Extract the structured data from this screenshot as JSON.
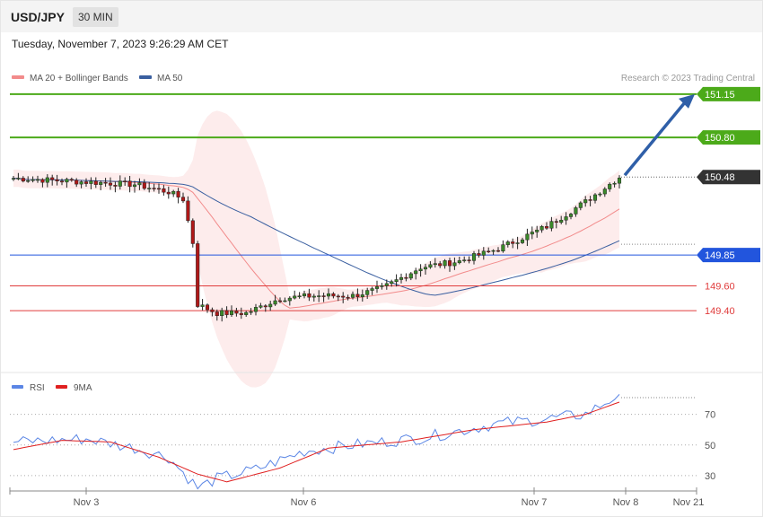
{
  "header": {
    "symbol": "USD/JPY",
    "timeframe": "30 MIN",
    "datetime": "Tuesday, November 7, 2023 9:26:29 AM CET"
  },
  "legend": {
    "ma20": "MA 20 + Bollinger Bands",
    "ma20_color": "#f28b8b",
    "ma50": "MA 50",
    "ma50_color": "#3a5fa0",
    "credit": "Research © 2023 Trading Central"
  },
  "rsi_legend": {
    "rsi": "RSI",
    "rsi_color": "#5b86e5",
    "ma": "9MA",
    "ma_color": "#e02020"
  },
  "levels": [
    {
      "value": "151.15",
      "price": 151.15,
      "kind": "green"
    },
    {
      "value": "150.80",
      "price": 150.8,
      "kind": "green"
    },
    {
      "value": "150.48",
      "price": 150.48,
      "kind": "last"
    },
    {
      "value": "149.85",
      "price": 149.85,
      "kind": "blue"
    },
    {
      "value": "149.60",
      "price": 149.6,
      "kind": "red"
    },
    {
      "value": "149.40",
      "price": 149.4,
      "kind": "red"
    }
  ],
  "xaxis": [
    "Nov 3",
    "Nov 6",
    "Nov 7",
    "Nov 8",
    "Nov 21"
  ],
  "rsi_ticks": [
    "70",
    "50",
    "30"
  ],
  "chart_data": {
    "type": "candlestick",
    "price_range": [
      148.9,
      151.2
    ],
    "anchors": [
      [
        0,
        150.47
      ],
      [
        10,
        150.45
      ],
      [
        25,
        150.42
      ],
      [
        32,
        150.36
      ],
      [
        35,
        150.3
      ],
      [
        37,
        149.95
      ],
      [
        38,
        149.45
      ],
      [
        42,
        149.38
      ],
      [
        48,
        149.38
      ],
      [
        55,
        149.5
      ],
      [
        62,
        149.52
      ],
      [
        70,
        149.52
      ],
      [
        76,
        149.58
      ],
      [
        84,
        149.75
      ],
      [
        92,
        149.8
      ],
      [
        100,
        149.9
      ],
      [
        110,
        150.08
      ],
      [
        118,
        150.28
      ],
      [
        125,
        150.48
      ]
    ],
    "rsi_range": [
      20,
      85
    ],
    "rsi_anchors": [
      [
        0,
        52
      ],
      [
        15,
        54
      ],
      [
        25,
        48
      ],
      [
        32,
        42
      ],
      [
        38,
        22
      ],
      [
        42,
        28
      ],
      [
        50,
        34
      ],
      [
        60,
        46
      ],
      [
        70,
        50
      ],
      [
        85,
        55
      ],
      [
        100,
        64
      ],
      [
        110,
        67
      ],
      [
        118,
        70
      ],
      [
        125,
        83
      ]
    ],
    "rsi_ma_anchors": [
      [
        0,
        47
      ],
      [
        10,
        53
      ],
      [
        20,
        52
      ],
      [
        30,
        42
      ],
      [
        38,
        31
      ],
      [
        44,
        26
      ],
      [
        55,
        35
      ],
      [
        65,
        48
      ],
      [
        80,
        52
      ],
      [
        95,
        60
      ],
      [
        110,
        65
      ],
      [
        118,
        70
      ],
      [
        125,
        78
      ]
    ],
    "annotations": [
      "arrow from 150.48 to 151.15"
    ]
  }
}
